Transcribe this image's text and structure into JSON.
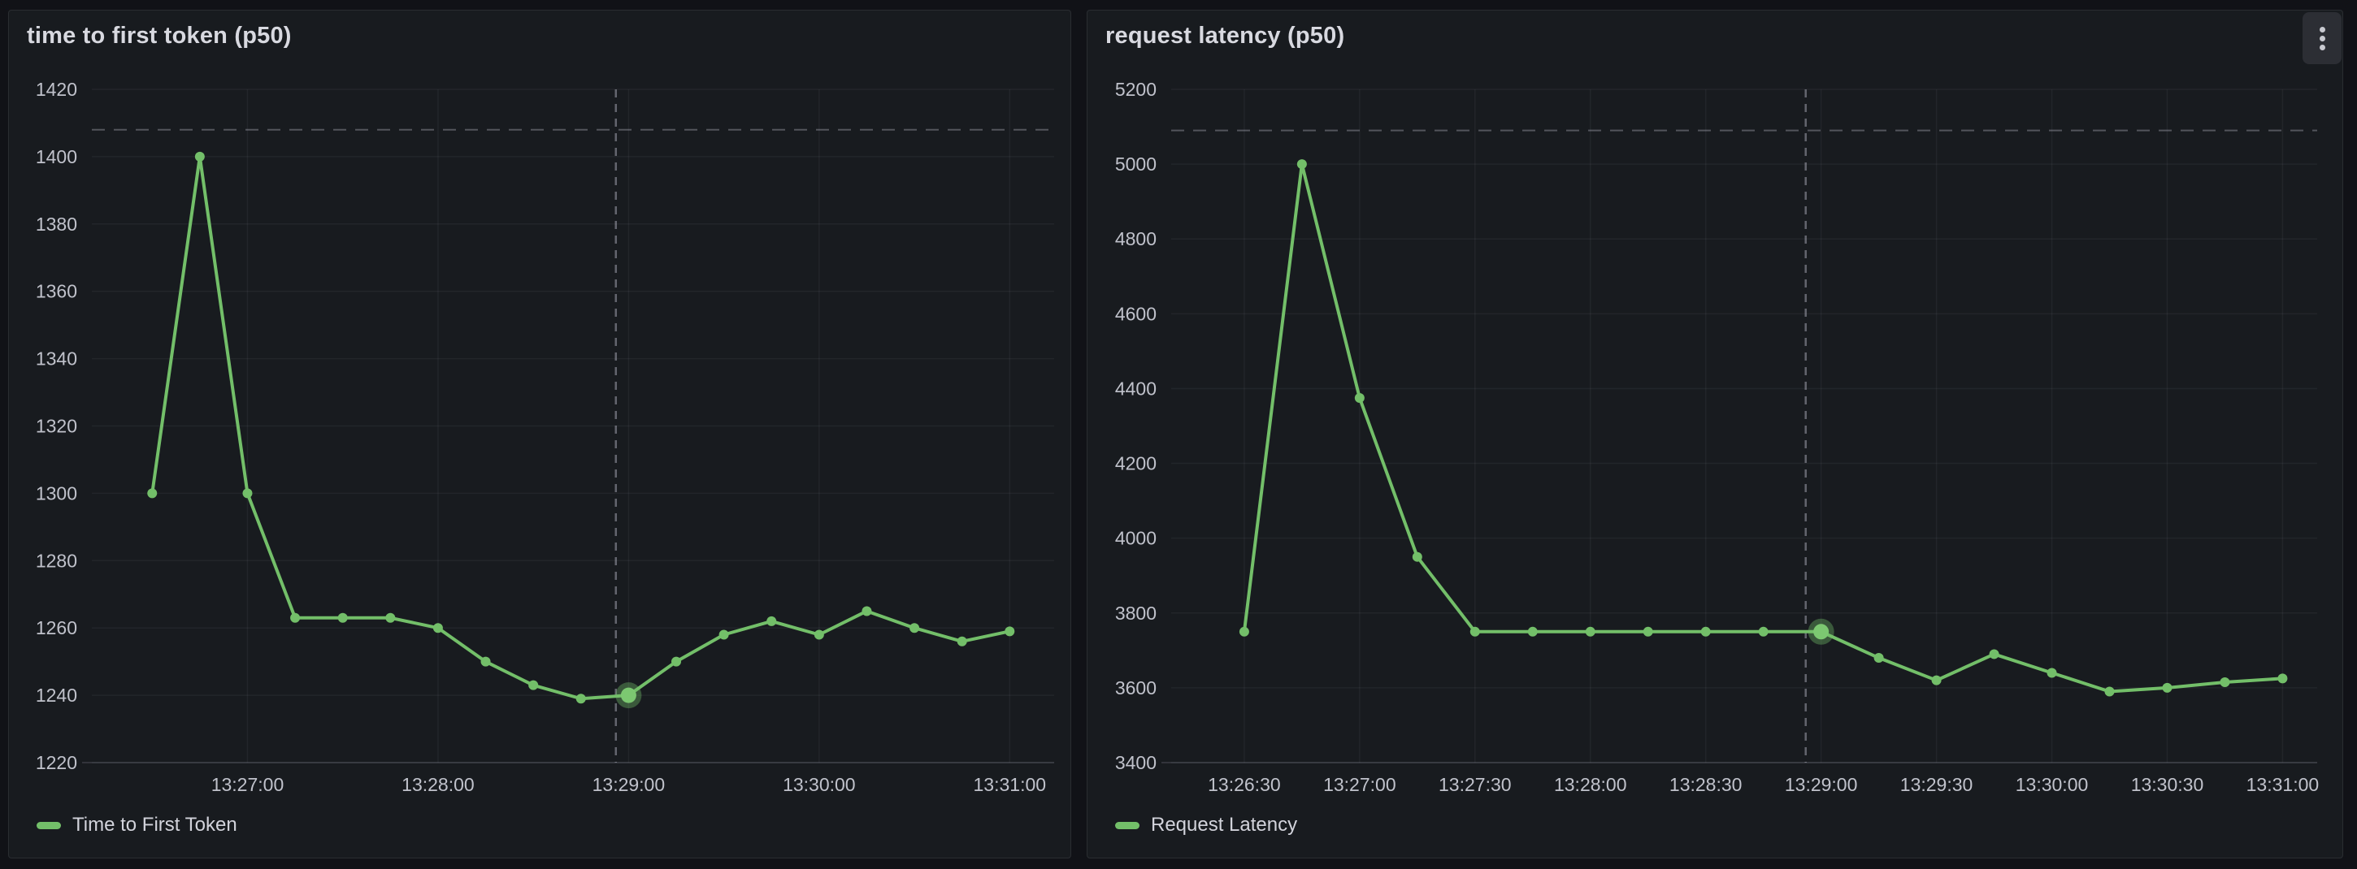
{
  "colors": {
    "page_bg": "#111217",
    "panel_bg": "#181b1f",
    "series_green": "#73BF69",
    "text": "#ccccdc"
  },
  "icons": {
    "panel_menu": "kebab-menu-icon"
  },
  "chart_data": [
    {
      "type": "line",
      "title": "time to first token (p50)",
      "xlabel": "",
      "ylabel": "",
      "grid": true,
      "legend_position": "bottom",
      "ylim": [
        1220,
        1420
      ],
      "y_ticks": [
        1220,
        1240,
        1260,
        1280,
        1300,
        1320,
        1340,
        1360,
        1380,
        1400,
        1420
      ],
      "xlim": [
        "13:26:11",
        "13:31:14"
      ],
      "x_ticks": [
        "13:27:00",
        "13:28:00",
        "13:29:00",
        "13:30:00",
        "13:31:00"
      ],
      "threshold_line": 1408,
      "crosshair_x": "13:28:56",
      "highlight_x": "13:29:00",
      "series": [
        {
          "name": "Time to First Token",
          "color": "#73BF69",
          "x": [
            "13:26:30",
            "13:26:45",
            "13:27:00",
            "13:27:15",
            "13:27:30",
            "13:27:45",
            "13:28:00",
            "13:28:15",
            "13:28:30",
            "13:28:45",
            "13:29:00",
            "13:29:15",
            "13:29:30",
            "13:29:45",
            "13:30:00",
            "13:30:15",
            "13:30:30",
            "13:30:45",
            "13:31:00"
          ],
          "values": [
            1300,
            1400,
            1300,
            1263,
            1263,
            1263,
            1260,
            1250,
            1243,
            1239,
            1240,
            1250,
            1258,
            1262,
            1258,
            1265,
            1260,
            1256,
            1259
          ]
        }
      ]
    },
    {
      "type": "line",
      "title": "request latency (p50)",
      "xlabel": "",
      "ylabel": "",
      "grid": true,
      "legend_position": "bottom",
      "ylim": [
        3400,
        5200
      ],
      "y_ticks": [
        3400,
        3600,
        3800,
        4000,
        4200,
        4400,
        4600,
        4800,
        5000,
        5200
      ],
      "xlim": [
        "13:26:11",
        "13:31:09"
      ],
      "x_ticks": [
        "13:26:30",
        "13:27:00",
        "13:27:30",
        "13:28:00",
        "13:28:30",
        "13:29:00",
        "13:29:30",
        "13:30:00",
        "13:30:30",
        "13:31:00"
      ],
      "threshold_line": 5090,
      "crosshair_x": "13:28:56",
      "highlight_x": "13:29:00",
      "series": [
        {
          "name": "Request Latency",
          "color": "#73BF69",
          "x": [
            "13:26:30",
            "13:26:45",
            "13:27:00",
            "13:27:15",
            "13:27:30",
            "13:27:45",
            "13:28:00",
            "13:28:15",
            "13:28:30",
            "13:28:45",
            "13:29:00",
            "13:29:15",
            "13:29:30",
            "13:29:45",
            "13:30:00",
            "13:30:15",
            "13:30:30",
            "13:30:45",
            "13:31:00"
          ],
          "values": [
            3750,
            5000,
            4375,
            3950,
            3750,
            3750,
            3750,
            3750,
            3750,
            3750,
            3750,
            3680,
            3620,
            3690,
            3640,
            3590,
            3600,
            3615,
            3625
          ]
        }
      ]
    }
  ]
}
